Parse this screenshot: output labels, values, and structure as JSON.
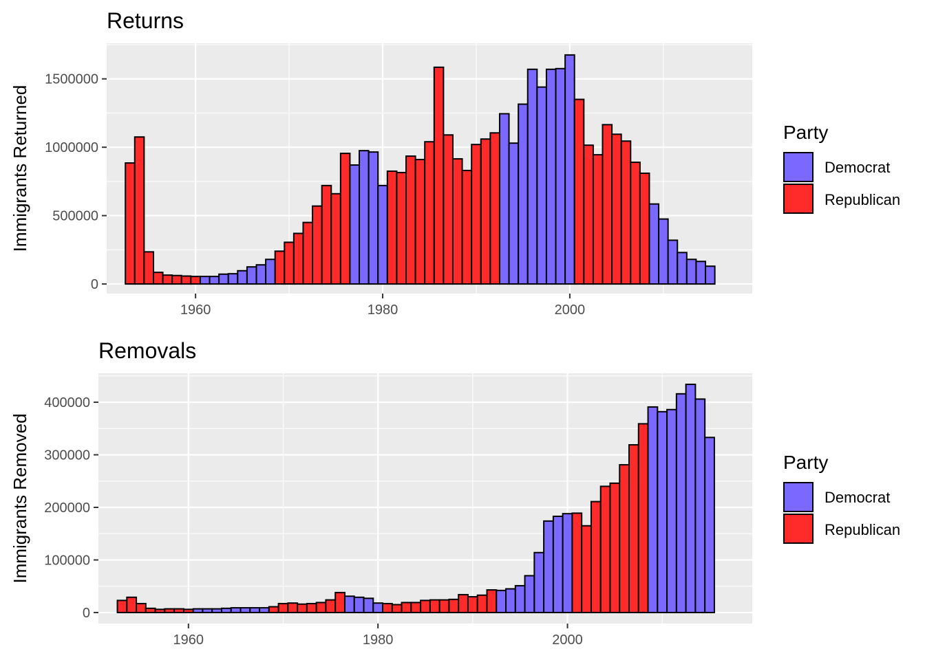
{
  "colors": {
    "Democrat": "#7b68ff",
    "Republican": "#ff2b2b",
    "panel": "#ebebeb",
    "grid": "#ffffff"
  },
  "legend": {
    "title": "Party",
    "items": [
      "Democrat",
      "Republican"
    ]
  },
  "chart_data": [
    {
      "type": "bar",
      "title": "Returns",
      "xlabel": "",
      "ylabel": "Immigrants Returned",
      "xlim": [
        1950.5,
        2019.5
      ],
      "ylim": [
        -70000,
        1760000
      ],
      "xticks": [
        1960,
        1980,
        2000
      ],
      "yticks": [
        0,
        500000,
        1000000,
        1500000
      ],
      "ytick_labels": [
        "0",
        "500000",
        "1000000",
        "1500000"
      ],
      "x": [
        1953,
        1954,
        1955,
        1956,
        1957,
        1958,
        1959,
        1960,
        1961,
        1962,
        1963,
        1964,
        1965,
        1966,
        1967,
        1968,
        1969,
        1970,
        1971,
        1972,
        1973,
        1974,
        1975,
        1976,
        1977,
        1978,
        1979,
        1980,
        1981,
        1982,
        1983,
        1984,
        1985,
        1986,
        1987,
        1988,
        1989,
        1990,
        1991,
        1992,
        1993,
        1994,
        1995,
        1996,
        1997,
        1998,
        1999,
        2000,
        2001,
        2002,
        2003,
        2004,
        2005,
        2006,
        2007,
        2008,
        2009,
        2010,
        2011,
        2012,
        2013,
        2014,
        2015
      ],
      "values": [
        885000,
        1075000,
        235000,
        85000,
        65000,
        62000,
        58000,
        55000,
        55000,
        55000,
        72000,
        75000,
        97000,
        125000,
        140000,
        180000,
        240000,
        305000,
        370000,
        450000,
        570000,
        720000,
        660000,
        955000,
        870000,
        975000,
        965000,
        720000,
        825000,
        815000,
        935000,
        910000,
        1040000,
        1585000,
        1090000,
        915000,
        830000,
        1020000,
        1060000,
        1105000,
        1245000,
        1030000,
        1315000,
        1570000,
        1440000,
        1570000,
        1575000,
        1675000,
        1350000,
        1015000,
        945000,
        1165000,
        1095000,
        1045000,
        890000,
        810000,
        585000,
        475000,
        320000,
        230000,
        180000,
        165000,
        130000
      ],
      "party": [
        "Republican",
        "Republican",
        "Republican",
        "Republican",
        "Republican",
        "Republican",
        "Republican",
        "Republican",
        "Democrat",
        "Democrat",
        "Democrat",
        "Democrat",
        "Democrat",
        "Democrat",
        "Democrat",
        "Democrat",
        "Republican",
        "Republican",
        "Republican",
        "Republican",
        "Republican",
        "Republican",
        "Republican",
        "Republican",
        "Democrat",
        "Democrat",
        "Democrat",
        "Democrat",
        "Republican",
        "Republican",
        "Republican",
        "Republican",
        "Republican",
        "Republican",
        "Republican",
        "Republican",
        "Republican",
        "Republican",
        "Republican",
        "Republican",
        "Democrat",
        "Democrat",
        "Democrat",
        "Democrat",
        "Democrat",
        "Democrat",
        "Democrat",
        "Democrat",
        "Republican",
        "Republican",
        "Republican",
        "Republican",
        "Republican",
        "Republican",
        "Republican",
        "Republican",
        "Democrat",
        "Democrat",
        "Democrat",
        "Democrat",
        "Democrat",
        "Democrat",
        "Democrat"
      ]
    },
    {
      "type": "bar",
      "title": "Removals",
      "xlabel": "",
      "ylabel": "Immigrants Removed",
      "xlim": [
        1950.5,
        2019.5
      ],
      "ylim": [
        -21000,
        455000
      ],
      "xticks": [
        1960,
        1980,
        2000
      ],
      "yticks": [
        0,
        100000,
        200000,
        300000,
        400000
      ],
      "ytick_labels": [
        "0",
        "100000",
        "200000",
        "300000",
        "400000"
      ],
      "x": [
        1953,
        1954,
        1955,
        1956,
        1957,
        1958,
        1959,
        1960,
        1961,
        1962,
        1963,
        1964,
        1965,
        1966,
        1967,
        1968,
        1969,
        1970,
        1971,
        1972,
        1973,
        1974,
        1975,
        1976,
        1977,
        1978,
        1979,
        1980,
        1981,
        1982,
        1983,
        1984,
        1985,
        1986,
        1987,
        1988,
        1989,
        1990,
        1991,
        1992,
        1993,
        1994,
        1995,
        1996,
        1997,
        1998,
        1999,
        2000,
        2001,
        2002,
        2003,
        2004,
        2005,
        2006,
        2007,
        2008,
        2009,
        2010,
        2011,
        2012,
        2013,
        2014,
        2015
      ],
      "values": [
        23000,
        29000,
        17000,
        8000,
        6000,
        7000,
        7000,
        6000,
        7000,
        7000,
        7000,
        8000,
        9000,
        9000,
        9000,
        9000,
        11000,
        17000,
        18000,
        16000,
        17000,
        19000,
        24000,
        38000,
        31000,
        29000,
        27000,
        18000,
        17000,
        15000,
        19000,
        19000,
        23000,
        24000,
        24000,
        25000,
        34000,
        30000,
        33000,
        43000,
        42000,
        45000,
        51000,
        70000,
        114000,
        174000,
        183000,
        188000,
        189000,
        165000,
        211000,
        240000,
        246000,
        281000,
        319000,
        359000,
        391000,
        382000,
        386000,
        416000,
        434000,
        406000,
        333000
      ],
      "party": [
        "Republican",
        "Republican",
        "Republican",
        "Republican",
        "Republican",
        "Republican",
        "Republican",
        "Republican",
        "Democrat",
        "Democrat",
        "Democrat",
        "Democrat",
        "Democrat",
        "Democrat",
        "Democrat",
        "Democrat",
        "Republican",
        "Republican",
        "Republican",
        "Republican",
        "Republican",
        "Republican",
        "Republican",
        "Republican",
        "Democrat",
        "Democrat",
        "Democrat",
        "Democrat",
        "Republican",
        "Republican",
        "Republican",
        "Republican",
        "Republican",
        "Republican",
        "Republican",
        "Republican",
        "Republican",
        "Republican",
        "Republican",
        "Republican",
        "Democrat",
        "Democrat",
        "Democrat",
        "Democrat",
        "Democrat",
        "Democrat",
        "Democrat",
        "Democrat",
        "Republican",
        "Republican",
        "Republican",
        "Republican",
        "Republican",
        "Republican",
        "Republican",
        "Republican",
        "Democrat",
        "Democrat",
        "Democrat",
        "Democrat",
        "Democrat",
        "Democrat",
        "Democrat"
      ]
    }
  ]
}
